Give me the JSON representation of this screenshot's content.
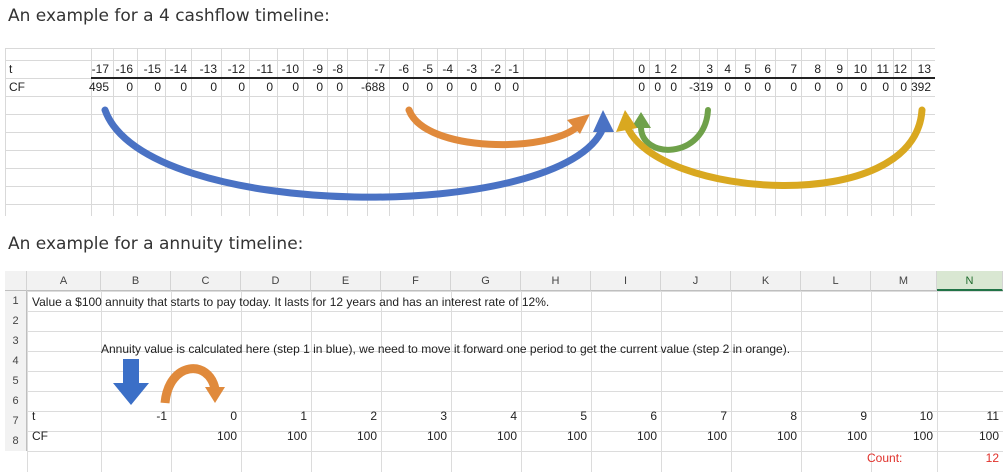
{
  "headings": {
    "cashflow": "An example for a 4 cashflow timeline:",
    "annuity": "An example for a annuity timeline:"
  },
  "timeline": {
    "t_label": "t",
    "cf_label": "CF",
    "t_values": [
      "-17",
      "-16",
      "-15",
      "-14",
      "-13",
      "-12",
      "-11",
      "-10",
      "-9",
      "-8",
      "-7",
      "-6",
      "-5",
      "-4",
      "-3",
      "-2",
      "-1",
      "0",
      "1",
      "2",
      "3",
      "4",
      "5",
      "6",
      "7",
      "8",
      "9",
      "10",
      "11",
      "12",
      "13"
    ],
    "cf_values": [
      "495",
      "0",
      "0",
      "0",
      "0",
      "0",
      "0",
      "0",
      "0",
      "0",
      "-688",
      "0",
      "0",
      "0",
      "0",
      "0",
      "0",
      "0",
      "0",
      "0",
      "-319",
      "0",
      "0",
      "0",
      "0",
      "0",
      "0",
      "0",
      "0",
      "0",
      "392"
    ],
    "arrow_colors": [
      "#4a72c4",
      "#e08a3c",
      "#6fa14a",
      "#d9a820"
    ]
  },
  "annuity_sheet": {
    "columns": [
      "A",
      "B",
      "C",
      "D",
      "E",
      "F",
      "G",
      "H",
      "I",
      "J",
      "K",
      "L",
      "M",
      "N"
    ],
    "selected_column": "N",
    "rows": [
      "1",
      "2",
      "3",
      "4",
      "5",
      "6",
      "7",
      "8"
    ],
    "row1_text": "Value a $100 annuity that starts to pay today.  It lasts for 12 years and has an interest rate of 12%.",
    "row3_text": "Annuity value is calculated here (step 1 in blue), we need to move it forward one period to get the current value (step 2 in orange).",
    "t_label": "t",
    "cf_label": "CF",
    "t_values": [
      "-1",
      "0",
      "1",
      "2",
      "3",
      "4",
      "5",
      "6",
      "7",
      "8",
      "9",
      "10",
      "11"
    ],
    "cf_values": [
      "100",
      "100",
      "100",
      "100",
      "100",
      "100",
      "100",
      "100",
      "100",
      "100",
      "100",
      "100"
    ],
    "count_label": "Count:",
    "count_value": "12",
    "colors": {
      "blue_arrow": "#3b6fc7",
      "orange_arrow": "#e08a3c",
      "count_red": "#e0312b"
    }
  }
}
